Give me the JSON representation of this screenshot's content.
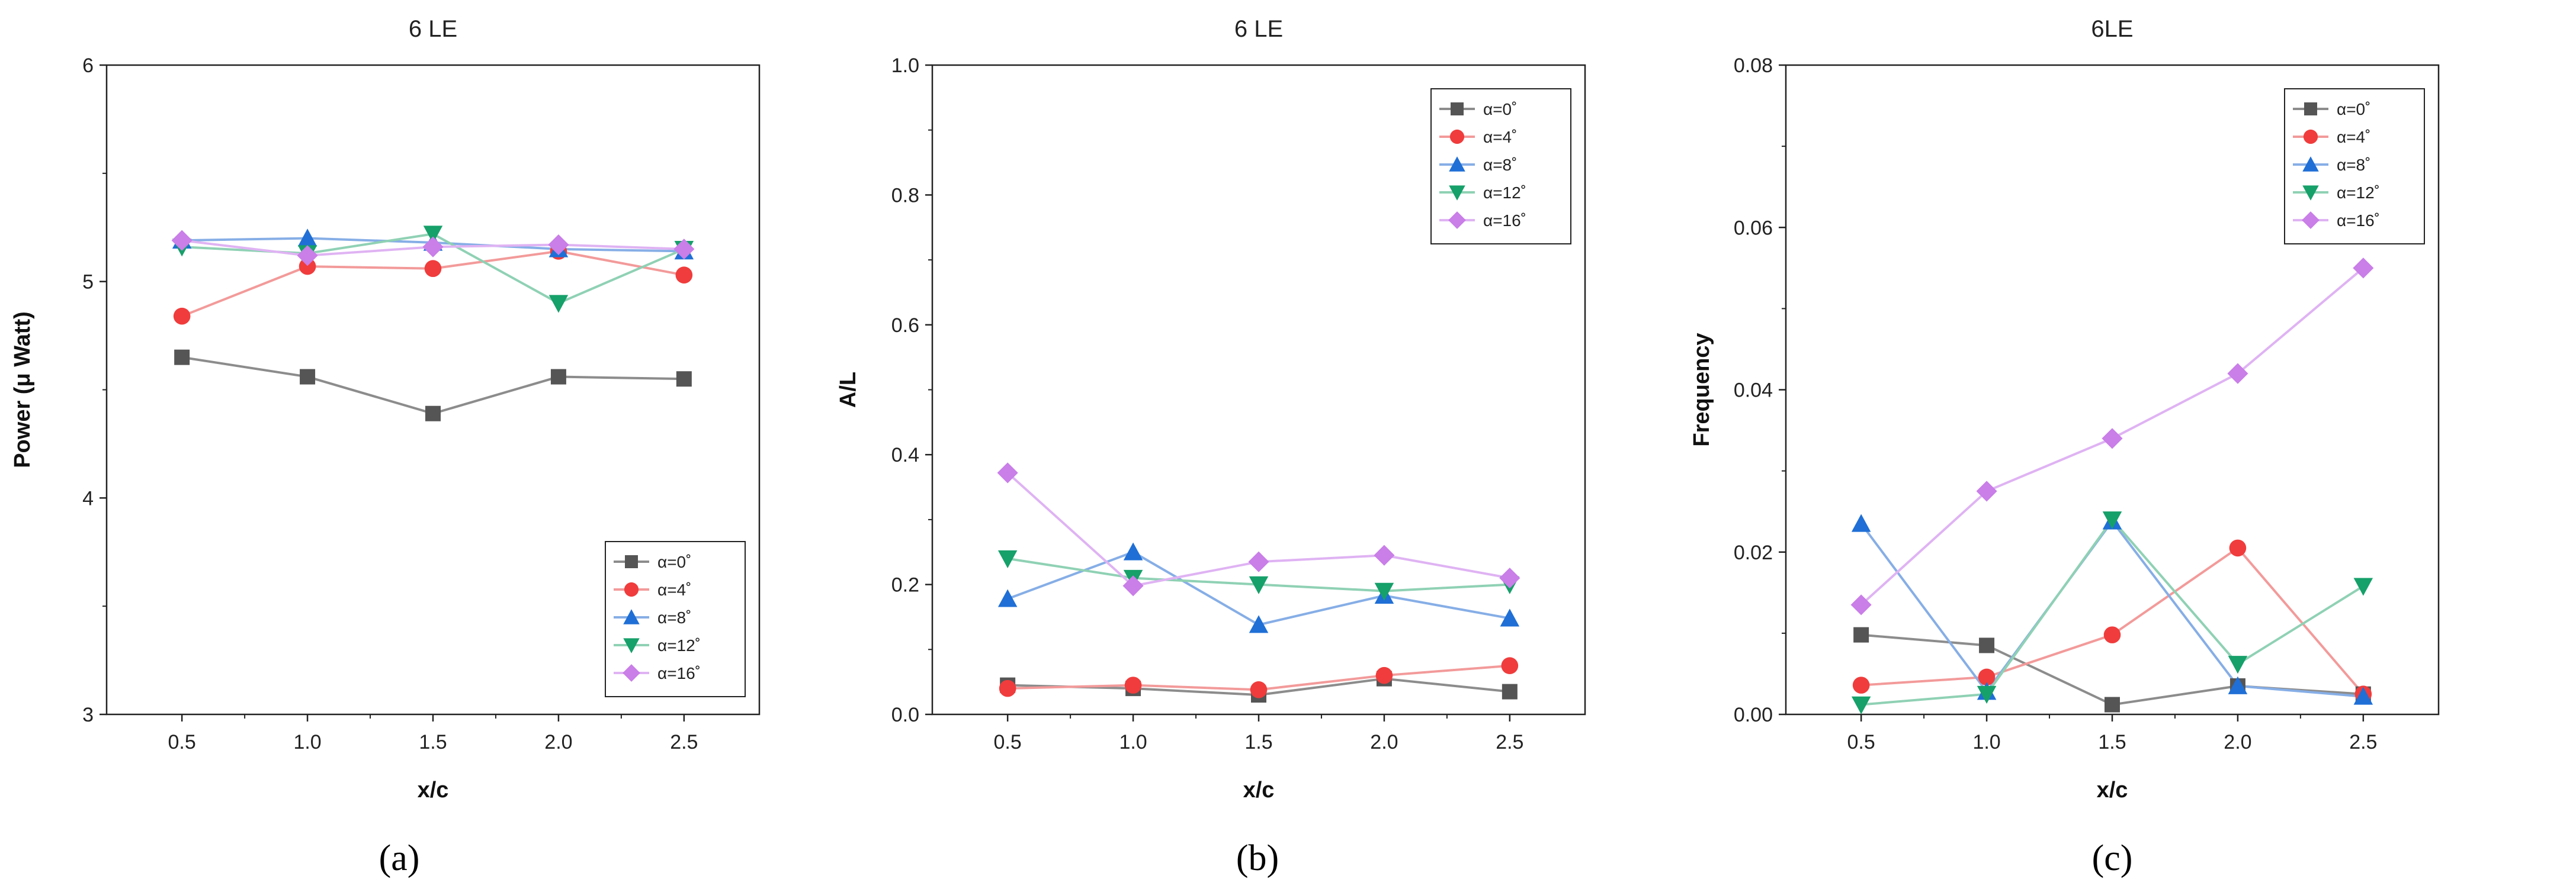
{
  "colors": {
    "a0": "#555555",
    "a4": "#f03c3c",
    "a8": "#1f6fd6",
    "a12": "#16a06a",
    "a16": "#c97ee8",
    "a0_line": "#8c8c8c",
    "a4_line": "#f39a9a",
    "a8_line": "#86aee6",
    "a12_line": "#8fd1b4",
    "a16_line": "#dfb3f3"
  },
  "chart_data": [
    {
      "type": "line",
      "panel": "a",
      "title": "6 LE",
      "xlabel": "x/c",
      "ylabel": "Power (μ Watt)",
      "x": [
        0.5,
        1.0,
        1.5,
        2.0,
        2.5
      ],
      "x_ticks": [
        "0.5",
        "1.0",
        "1.5",
        "2.0",
        "2.5"
      ],
      "xlim": [
        0.2,
        2.8
      ],
      "ylim": [
        3,
        6
      ],
      "y_ticks": [
        "3",
        "4",
        "5",
        "6"
      ],
      "y_tick_values": [
        3,
        4,
        5,
        6
      ],
      "legend_position": "bottom-right",
      "series": [
        {
          "name": "α=0˚",
          "key": "a0",
          "marker": "square",
          "values": [
            4.65,
            4.56,
            4.39,
            4.56,
            4.55
          ]
        },
        {
          "name": "α=4˚",
          "key": "a4",
          "marker": "circle",
          "values": [
            4.84,
            5.07,
            5.06,
            5.14,
            5.03
          ]
        },
        {
          "name": "α=8˚",
          "key": "a8",
          "marker": "triangle-up",
          "values": [
            5.19,
            5.2,
            5.18,
            5.15,
            5.14
          ]
        },
        {
          "name": "α=12˚",
          "key": "a12",
          "marker": "triangle-down",
          "values": [
            5.16,
            5.13,
            5.22,
            4.9,
            5.15
          ]
        },
        {
          "name": "α=16˚",
          "key": "a16",
          "marker": "diamond",
          "values": [
            5.19,
            5.12,
            5.16,
            5.17,
            5.15
          ]
        }
      ]
    },
    {
      "type": "line",
      "panel": "b",
      "title": "6 LE",
      "xlabel": "x/c",
      "ylabel": "A/L",
      "x": [
        0.5,
        1.0,
        1.5,
        2.0,
        2.5
      ],
      "x_ticks": [
        "0.5",
        "1.0",
        "1.5",
        "2.0",
        "2.5"
      ],
      "xlim": [
        0.2,
        2.8
      ],
      "ylim": [
        0,
        1.0
      ],
      "y_ticks": [
        "0.0",
        "0.2",
        "0.4",
        "0.6",
        "0.8",
        "1.0"
      ],
      "y_tick_values": [
        0,
        0.2,
        0.4,
        0.6,
        0.8,
        1.0
      ],
      "legend_position": "top-right",
      "series": [
        {
          "name": "α=0˚",
          "key": "a0",
          "marker": "square",
          "values": [
            0.045,
            0.04,
            0.03,
            0.055,
            0.035
          ]
        },
        {
          "name": "α=4˚",
          "key": "a4",
          "marker": "circle",
          "values": [
            0.04,
            0.045,
            0.038,
            0.06,
            0.075
          ]
        },
        {
          "name": "α=8˚",
          "key": "a8",
          "marker": "triangle-up",
          "values": [
            0.178,
            0.25,
            0.138,
            0.183,
            0.148
          ]
        },
        {
          "name": "α=12˚",
          "key": "a12",
          "marker": "triangle-down",
          "values": [
            0.24,
            0.21,
            0.2,
            0.19,
            0.2
          ]
        },
        {
          "name": "α=16˚",
          "key": "a16",
          "marker": "diamond",
          "values": [
            0.372,
            0.198,
            0.235,
            0.245,
            0.21
          ]
        }
      ]
    },
    {
      "type": "line",
      "panel": "c",
      "title": "6LE",
      "xlabel": "x/c",
      "ylabel": "Frequency",
      "x": [
        0.5,
        1.0,
        1.5,
        2.0,
        2.5
      ],
      "x_ticks": [
        "0.5",
        "1.0",
        "1.5",
        "2.0",
        "2.5"
      ],
      "xlim": [
        0.2,
        2.8
      ],
      "ylim": [
        0,
        0.08
      ],
      "y_ticks": [
        "0.00",
        "0.02",
        "0.04",
        "0.06",
        "0.08"
      ],
      "y_tick_values": [
        0,
        0.02,
        0.04,
        0.06,
        0.08
      ],
      "legend_position": "top-right",
      "series": [
        {
          "name": "α=0˚",
          "key": "a0",
          "marker": "square",
          "values": [
            0.0098,
            0.0085,
            0.0012,
            0.0035,
            0.0025
          ]
        },
        {
          "name": "α=4˚",
          "key": "a4",
          "marker": "circle",
          "values": [
            0.0036,
            0.0046,
            0.0098,
            0.0205,
            0.0025
          ]
        },
        {
          "name": "α=8˚",
          "key": "a8",
          "marker": "triangle-up",
          "values": [
            0.0235,
            0.0028,
            0.0238,
            0.0035,
            0.0022
          ]
        },
        {
          "name": "α=12˚",
          "key": "a12",
          "marker": "triangle-down",
          "values": [
            0.0012,
            0.0025,
            0.024,
            0.0062,
            0.0158
          ]
        },
        {
          "name": "α=16˚",
          "key": "a16",
          "marker": "diamond",
          "values": [
            0.0135,
            0.0275,
            0.034,
            0.042,
            0.055
          ]
        }
      ]
    }
  ],
  "panel_labels": [
    "(a)",
    "(b)",
    "(c)"
  ]
}
